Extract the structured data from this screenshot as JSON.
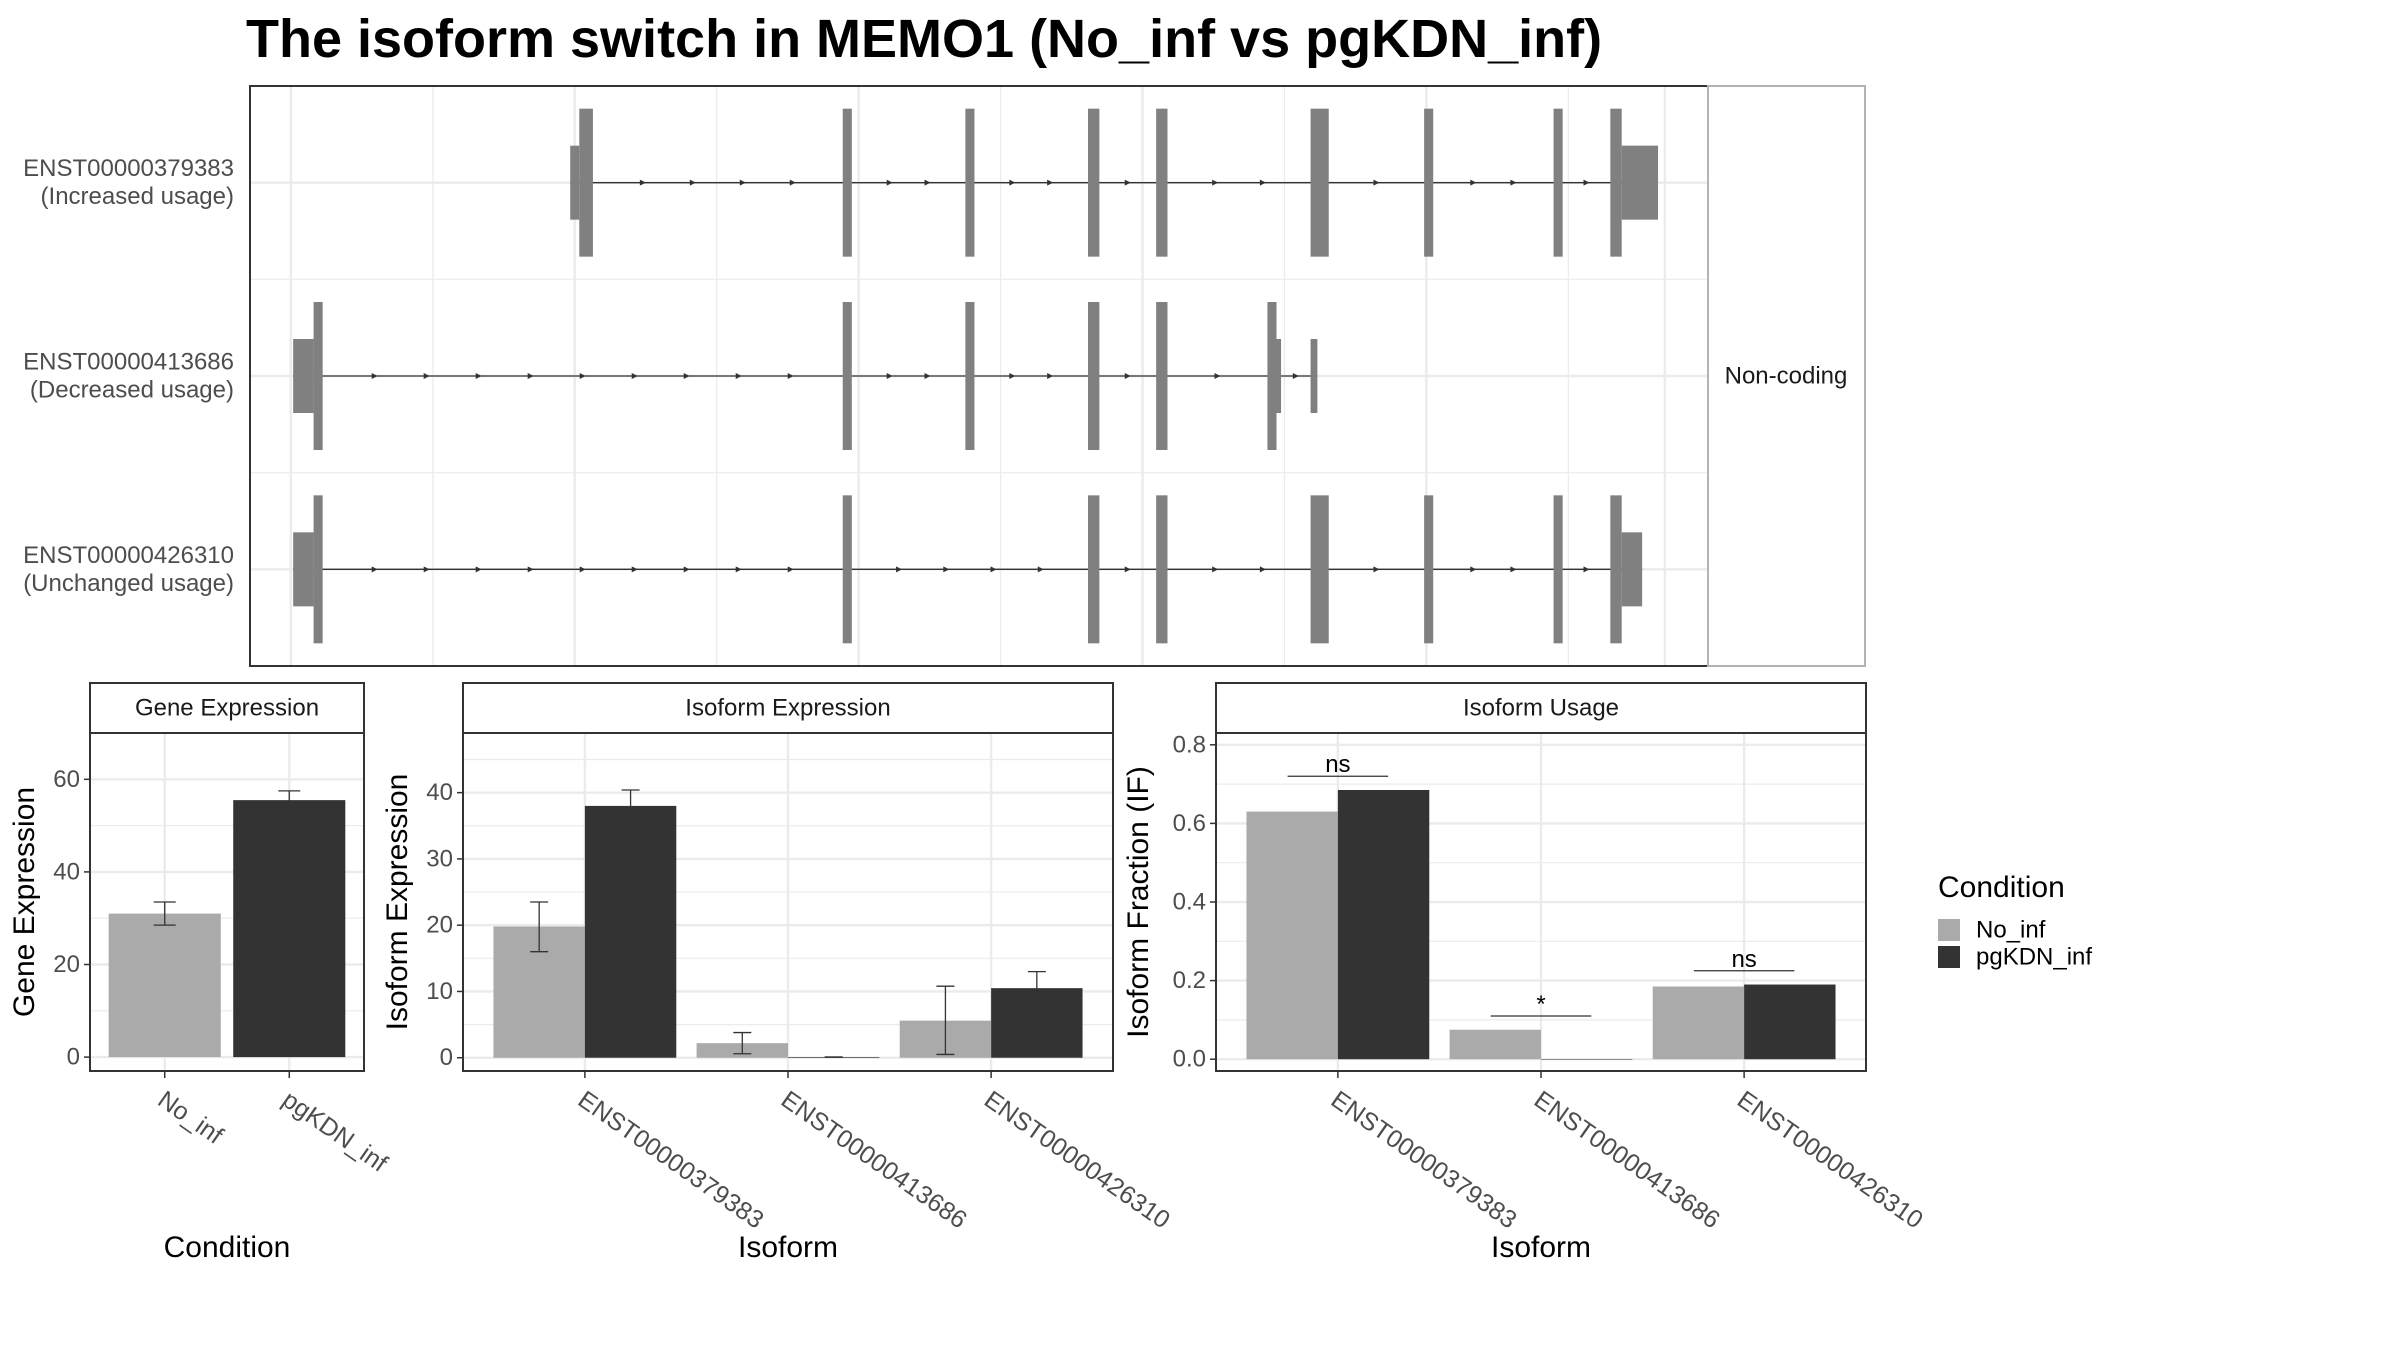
{
  "title": "The isoform switch in MEMO1 (No_inf vs pgKDN_inf)",
  "colors": {
    "No_inf": "#aaaaaa",
    "pgKDN_inf": "#333333",
    "exon": "#808080",
    "grid": "#ebebeb",
    "panel_border": "#333333",
    "strip_border": "#b3b3b3",
    "text": "#4d4d4d"
  },
  "chart_data": [
    {
      "type": "gene-structure",
      "strip_label": "Non-coding",
      "transcripts": [
        {
          "id": "ENST00000379383",
          "annotation": "(Increased usage)",
          "coding": [
            [
              0.2,
              0.8
            ],
            [
              11.8,
              12.2
            ],
            [
              17.2,
              17.6
            ],
            [
              22.6,
              23.1
            ],
            [
              25.6,
              26.1
            ],
            [
              32.4,
              33.2
            ],
            [
              37.4,
              37.8
            ],
            [
              43.1,
              43.5
            ],
            [
              45.6,
              46.1
            ]
          ],
          "utr": [
            [
              -0.2,
              0.2
            ],
            [
              46.1,
              47.7
            ]
          ]
        },
        {
          "id": "ENST00000413686",
          "annotation": "(Decreased usage)",
          "coding": [
            [
              -11.5,
              -11.1
            ],
            [
              11.8,
              12.2
            ],
            [
              17.2,
              17.6
            ],
            [
              22.6,
              23.1
            ],
            [
              25.6,
              26.1
            ],
            [
              30.5,
              30.9
            ]
          ],
          "utr": [
            [
              -12.4,
              -11.5
            ],
            [
              30.9,
              31.1
            ],
            [
              32.4,
              32.7
            ]
          ]
        },
        {
          "id": "ENST00000426310",
          "annotation": "(Unchanged usage)",
          "coding": [
            [
              -11.5,
              -11.1
            ],
            [
              11.8,
              12.2
            ],
            [
              22.6,
              23.1
            ],
            [
              25.6,
              26.1
            ],
            [
              32.4,
              33.2
            ],
            [
              37.4,
              37.8
            ],
            [
              43.1,
              43.5
            ],
            [
              45.6,
              46.1
            ]
          ],
          "utr": [
            [
              -12.4,
              -11.5
            ],
            [
              46.1,
              47.0
            ]
          ]
        }
      ]
    },
    {
      "type": "bar",
      "strip_label": "Gene Expression",
      "categories": [
        "No_inf",
        "pgKDN_inf"
      ],
      "values": [
        31,
        55.5
      ],
      "errors": [
        [
          28.5,
          33.5
        ],
        [
          53.5,
          57.5
        ]
      ],
      "xlabel": "Condition",
      "ylabel": "Gene Expression",
      "ylim": [
        -3,
        70
      ],
      "yticks": [
        0,
        20,
        40,
        60
      ]
    },
    {
      "type": "bar",
      "strip_label": "Isoform Expression",
      "categories": [
        "ENST00000379383",
        "ENST00000413686",
        "ENST00000426310"
      ],
      "series": [
        {
          "name": "No_inf",
          "values": [
            19.8,
            2.2,
            5.6
          ],
          "errors": [
            [
              16,
              23.5
            ],
            [
              0.6,
              3.8
            ],
            [
              0.5,
              10.8
            ]
          ]
        },
        {
          "name": "pgKDN_inf",
          "values": [
            38,
            0.1,
            10.5
          ],
          "errors": [
            [
              35.6,
              40.4
            ],
            [
              0.1,
              0.1
            ],
            [
              8,
              13
            ]
          ]
        }
      ],
      "xlabel": "Isoform",
      "ylabel": "Isoform Expression",
      "ylim": [
        -2,
        49
      ],
      "yticks": [
        0,
        10,
        20,
        30,
        40
      ]
    },
    {
      "type": "bar",
      "strip_label": "Isoform Usage",
      "categories": [
        "ENST00000379383",
        "ENST00000413686",
        "ENST00000426310"
      ],
      "series": [
        {
          "name": "No_inf",
          "values": [
            0.63,
            0.075,
            0.185
          ]
        },
        {
          "name": "pgKDN_inf",
          "values": [
            0.685,
            0.0,
            0.19
          ]
        }
      ],
      "significance": [
        "ns",
        "*",
        "ns"
      ],
      "significance_y": [
        0.72,
        0.11,
        0.225
      ],
      "xlabel": "Isoform",
      "ylabel": "Isoform Fraction (IF)",
      "ylim": [
        -0.03,
        0.83
      ],
      "yticks": [
        "0.0",
        "0.2",
        "0.4",
        "0.6",
        "0.8"
      ]
    }
  ],
  "legend": {
    "title": "Condition",
    "items": [
      "No_inf",
      "pgKDN_inf"
    ]
  }
}
